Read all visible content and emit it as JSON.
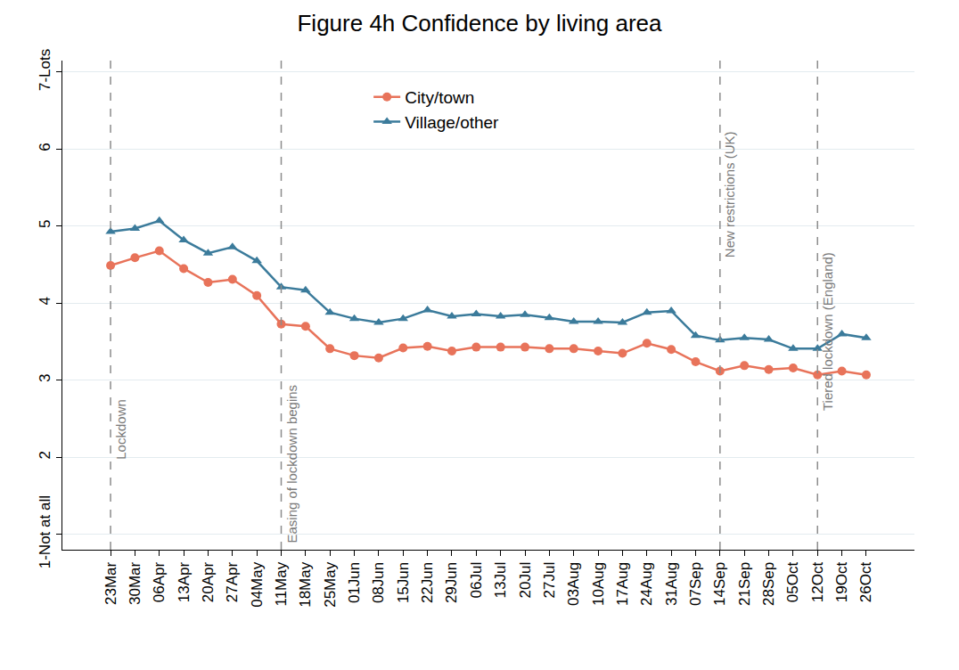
{
  "chart_data": {
    "type": "line",
    "title": "Figure 4h Confidence by living area",
    "categories": [
      "23Mar",
      "30Mar",
      "06Apr",
      "13Apr",
      "20Apr",
      "27Apr",
      "04May",
      "11May",
      "18May",
      "25May",
      "01Jun",
      "08Jun",
      "15Jun",
      "22Jun",
      "29Jun",
      "06Jul",
      "13Jul",
      "20Jul",
      "27Jul",
      "03Aug",
      "10Aug",
      "17Aug",
      "24Aug",
      "31Aug",
      "07Sep",
      "14Sep",
      "21Sep",
      "28Sep",
      "05Oct",
      "12Oct",
      "19Oct",
      "26Oct"
    ],
    "series": [
      {
        "name": "City/town",
        "color": "#E8735A",
        "marker": "circle",
        "line_style": "solid",
        "values": [
          4.49,
          4.59,
          4.68,
          4.45,
          4.27,
          4.31,
          4.1,
          3.73,
          3.7,
          3.41,
          3.32,
          3.29,
          3.42,
          3.44,
          3.38,
          3.43,
          3.43,
          3.43,
          3.41,
          3.41,
          3.38,
          3.35,
          3.48,
          3.4,
          3.24,
          3.12,
          3.19,
          3.14,
          3.16,
          3.07,
          3.12,
          3.07
        ]
      },
      {
        "name": "Village/other",
        "color": "#3B7B9B",
        "marker": "triangle-up",
        "line_style": "solid",
        "values": [
          4.93,
          4.97,
          5.07,
          4.82,
          4.65,
          4.73,
          4.55,
          4.21,
          4.17,
          3.88,
          3.8,
          3.75,
          3.8,
          3.91,
          3.83,
          3.86,
          3.83,
          3.85,
          3.81,
          3.76,
          3.76,
          3.75,
          3.88,
          3.9,
          3.58,
          3.52,
          3.55,
          3.53,
          3.41,
          3.41,
          3.6,
          3.55
        ]
      }
    ],
    "ylim": [
      0.8,
      7.15
    ],
    "yticks": [
      {
        "value": 1,
        "label": "1-Not at all"
      },
      2,
      3,
      4,
      5,
      6,
      {
        "value": 7,
        "label": "7-Lots"
      }
    ],
    "grid": true,
    "legend": "top",
    "annotations": [
      {
        "x": "23Mar",
        "text": "Lockdown"
      },
      {
        "x": "11May",
        "text": "Easing of lockdown begins"
      },
      {
        "x": "14Sep",
        "text": "New restrictions (UK)"
      },
      {
        "x": "12Oct",
        "text": "Tiered lockdown (England)"
      }
    ]
  }
}
